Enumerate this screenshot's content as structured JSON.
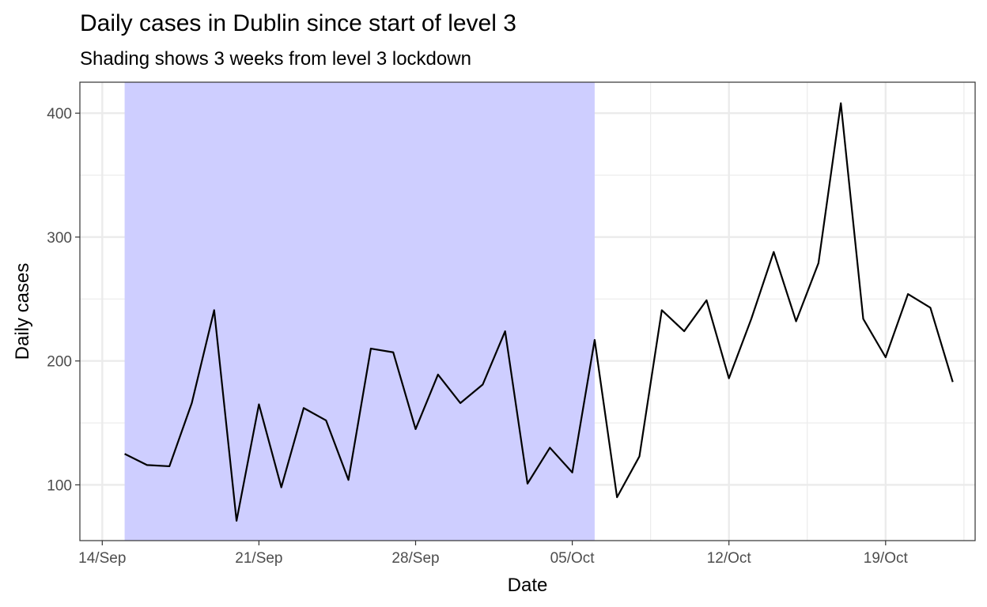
{
  "chart_data": {
    "type": "line",
    "title": "Daily cases in Dublin since start of level 3",
    "subtitle": "Shading shows 3 weeks from level 3 lockdown",
    "xlabel": "Date",
    "ylabel": "Daily cases",
    "x_ticks": [
      {
        "date": "2020-09-14",
        "label": "14/Sep"
      },
      {
        "date": "2020-09-21",
        "label": "21/Sep"
      },
      {
        "date": "2020-09-28",
        "label": "28/Sep"
      },
      {
        "date": "2020-10-05",
        "label": "05/Oct"
      },
      {
        "date": "2020-10-12",
        "label": "12/Oct"
      },
      {
        "date": "2020-10-19",
        "label": "19/Oct"
      }
    ],
    "y_ticks": [
      100,
      200,
      300,
      400
    ],
    "xlim": [
      "2020-09-13",
      "2020-10-23"
    ],
    "ylim": [
      55,
      425
    ],
    "grid": true,
    "shading": {
      "start": "2020-09-15",
      "end": "2020-10-06",
      "color": "#ccccff"
    },
    "line_color": "#000000",
    "series": [
      {
        "x": [
          "2020-09-15",
          "2020-09-16",
          "2020-09-17",
          "2020-09-18",
          "2020-09-19",
          "2020-09-20",
          "2020-09-21",
          "2020-09-22",
          "2020-09-23",
          "2020-09-24",
          "2020-09-25",
          "2020-09-26",
          "2020-09-27",
          "2020-09-28",
          "2020-09-29",
          "2020-09-30",
          "2020-10-01",
          "2020-10-02",
          "2020-10-03",
          "2020-10-04",
          "2020-10-05",
          "2020-10-06",
          "2020-10-07",
          "2020-10-08",
          "2020-10-09",
          "2020-10-10",
          "2020-10-11",
          "2020-10-12",
          "2020-10-13",
          "2020-10-14",
          "2020-10-15",
          "2020-10-16",
          "2020-10-17",
          "2020-10-18",
          "2020-10-19",
          "2020-10-20",
          "2020-10-21",
          "2020-10-22"
        ],
        "values": [
          125,
          116,
          115,
          166,
          241,
          71,
          165,
          98,
          162,
          152,
          104,
          210,
          207,
          145,
          189,
          166,
          181,
          224,
          101,
          130,
          110,
          217,
          90,
          123,
          241,
          224,
          249,
          186,
          234,
          288,
          232,
          279,
          408,
          234,
          203,
          254,
          243,
          183
        ]
      }
    ]
  }
}
